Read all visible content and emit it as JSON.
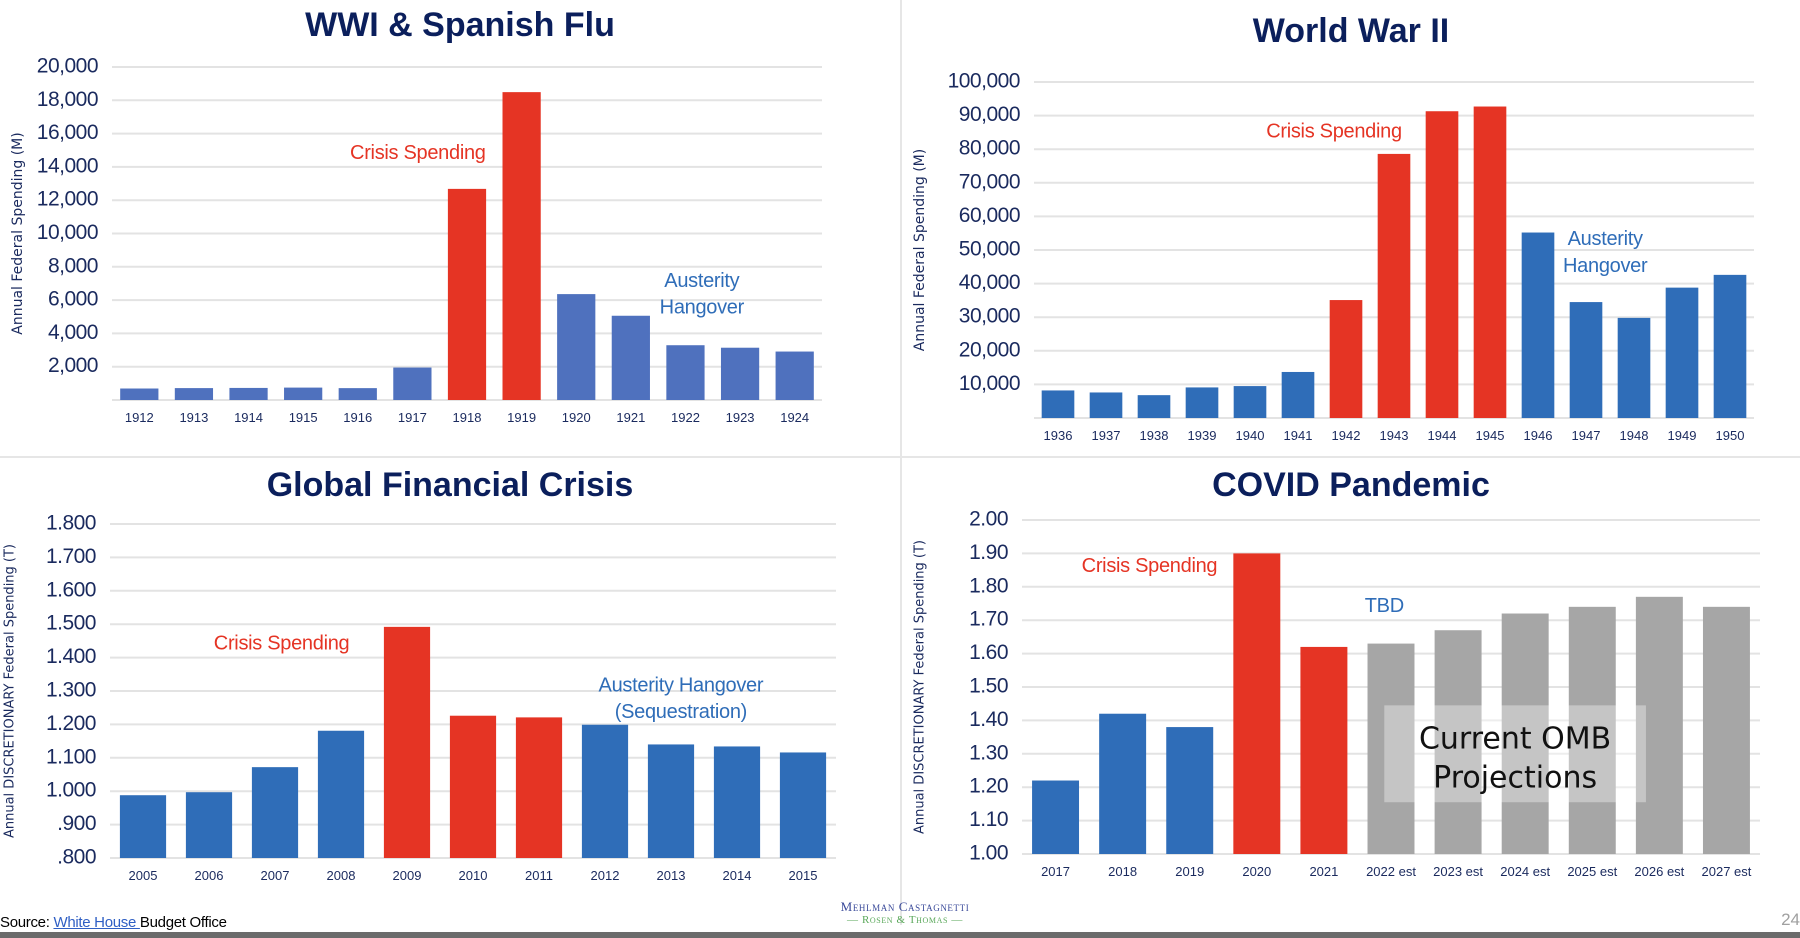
{
  "colors": {
    "title": "#0b1f5c",
    "axis_text": "#1a2a5e",
    "blue_wwi": "#4f71be",
    "blue": "#2f6db8",
    "red": "#e53424",
    "gray": "#a6a6a6",
    "grid": "#e3e3e3",
    "annotation_red": "#e53424",
    "annotation_blue": "#2f6db8"
  },
  "chart_data": [
    {
      "id": "wwi",
      "type": "bar",
      "title": "WWI & Spanish Flu",
      "xlabel": "",
      "ylabel": "Annual Federal Spending (M)",
      "ylim": [
        0,
        20000
      ],
      "yticks": [
        2000,
        4000,
        6000,
        8000,
        10000,
        12000,
        14000,
        16000,
        18000,
        20000
      ],
      "ytick_labels": [
        "2,000",
        "4,000",
        "6,000",
        "8,000",
        "10,000",
        "12,000",
        "14,000",
        "16,000",
        "18,000",
        "20,000"
      ],
      "grid": true,
      "categories": [
        "1912",
        "1913",
        "1914",
        "1915",
        "1916",
        "1917",
        "1918",
        "1919",
        "1920",
        "1921",
        "1922",
        "1923",
        "1924"
      ],
      "values": [
        690,
        715,
        725,
        745,
        713,
        1950,
        12680,
        18490,
        6360,
        5060,
        3290,
        3140,
        2910
      ],
      "bar_colors": [
        "blue_wwi",
        "blue_wwi",
        "blue_wwi",
        "blue_wwi",
        "blue_wwi",
        "blue_wwi",
        "red",
        "red",
        "blue_wwi",
        "blue_wwi",
        "blue_wwi",
        "blue_wwi",
        "blue_wwi"
      ],
      "annotations": [
        {
          "text": "Crisis Spending",
          "color": "annotation_red",
          "at_category": 5.6,
          "at_value": 14800
        },
        {
          "text": "Austerity",
          "color": "annotation_blue",
          "at_category": 10.8,
          "at_value": 7100
        },
        {
          "text": "Hangover",
          "color": "annotation_blue",
          "at_category": 10.8,
          "at_value": 5500
        }
      ]
    },
    {
      "id": "wwii",
      "type": "bar",
      "title": "World War II",
      "xlabel": "",
      "ylabel": "Annual Federal Spending (M)",
      "ylim": [
        0,
        100000
      ],
      "yticks": [
        10000,
        20000,
        30000,
        40000,
        50000,
        60000,
        70000,
        80000,
        90000,
        100000
      ],
      "ytick_labels": [
        "10,000",
        "20,000",
        "30,000",
        "40,000",
        "50,000",
        "60,000",
        "70,000",
        "80,000",
        "90,000",
        "100,000"
      ],
      "grid": true,
      "categories": [
        "1936",
        "1937",
        "1938",
        "1939",
        "1940",
        "1941",
        "1942",
        "1943",
        "1944",
        "1945",
        "1946",
        "1947",
        "1948",
        "1949",
        "1950"
      ],
      "values": [
        8200,
        7600,
        6800,
        9100,
        9500,
        13700,
        35100,
        78600,
        91300,
        92700,
        55200,
        34500,
        29800,
        38800,
        42600
      ],
      "bar_colors": [
        "blue",
        "blue",
        "blue",
        "blue",
        "blue",
        "blue",
        "red",
        "red",
        "red",
        "red",
        "blue",
        "blue",
        "blue",
        "blue",
        "blue"
      ],
      "annotations": [
        {
          "text": "Crisis Spending",
          "color": "annotation_red",
          "at_category": 6.25,
          "at_value": 85000
        },
        {
          "text": "Austerity",
          "color": "annotation_blue",
          "at_category": 11.9,
          "at_value": 53000
        },
        {
          "text": "Hangover",
          "color": "annotation_blue",
          "at_category": 11.9,
          "at_value": 45000
        }
      ]
    },
    {
      "id": "gfc",
      "type": "bar",
      "title": "Global Financial Crisis",
      "xlabel": "",
      "ylabel": "Annual DISCRETIONARY Federal Spending (T)",
      "ylim": [
        0.8,
        1.8
      ],
      "yticks": [
        0.8,
        0.9,
        1.0,
        1.1,
        1.2,
        1.3,
        1.4,
        1.5,
        1.6,
        1.7,
        1.8
      ],
      "ytick_labels": [
        ".800",
        ".900",
        "1.000",
        "1.100",
        "1.200",
        "1.300",
        "1.400",
        "1.500",
        "1.600",
        "1.700",
        "1.800"
      ],
      "grid": true,
      "categories": [
        "2005",
        "2006",
        "2007",
        "2008",
        "2009",
        "2010",
        "2011",
        "2012",
        "2013",
        "2014",
        "2015"
      ],
      "values": [
        0.988,
        0.997,
        1.072,
        1.181,
        1.492,
        1.226,
        1.221,
        1.199,
        1.14,
        1.134,
        1.116
      ],
      "bar_colors": [
        "blue",
        "blue",
        "blue",
        "blue",
        "red",
        "red",
        "red",
        "blue",
        "blue",
        "blue",
        "blue"
      ],
      "annotations": [
        {
          "text": "Crisis Spending",
          "color": "annotation_red",
          "at_category": 2.6,
          "at_value": 1.44
        },
        {
          "text": "Austerity Hangover",
          "color": "annotation_blue",
          "at_category": 8.65,
          "at_value": 1.315
        },
        {
          "text": "(Sequestration)",
          "color": "annotation_blue",
          "at_category": 8.65,
          "at_value": 1.235
        }
      ]
    },
    {
      "id": "covid",
      "type": "bar",
      "title": "COVID Pandemic",
      "xlabel": "",
      "ylabel": "Annual DISCRETIONARY Federal Spending (T)",
      "ylim": [
        1.0,
        2.0
      ],
      "yticks": [
        1.0,
        1.1,
        1.2,
        1.3,
        1.4,
        1.5,
        1.6,
        1.7,
        1.8,
        1.9,
        2.0
      ],
      "ytick_labels": [
        "1.00",
        "1.10",
        "1.20",
        "1.30",
        "1.40",
        "1.50",
        "1.60",
        "1.70",
        "1.80",
        "1.90",
        "2.00"
      ],
      "grid": true,
      "categories": [
        "2017",
        "2018",
        "2019",
        "2020",
        "2021",
        "2022 est",
        "2023 est",
        "2024 est",
        "2025 est",
        "2026 est",
        "2027 est"
      ],
      "values": [
        1.22,
        1.42,
        1.38,
        1.9,
        1.62,
        1.63,
        1.67,
        1.72,
        1.74,
        1.77,
        1.74
      ],
      "bar_colors": [
        "blue",
        "blue",
        "blue",
        "red",
        "red",
        "gray",
        "gray",
        "gray",
        "gray",
        "gray",
        "gray"
      ],
      "annotations": [
        {
          "text": "Crisis Spending",
          "color": "annotation_red",
          "at_category": 1.9,
          "at_value": 1.86
        },
        {
          "text": "TBD",
          "color": "annotation_blue",
          "at_category": 5.4,
          "at_value": 1.74
        }
      ],
      "overlay_box": {
        "lines": [
          "Current OMB",
          "Projections"
        ],
        "from_category": 5.4,
        "to_category": 9.3,
        "from_value": 1.155,
        "to_value": 1.445
      }
    }
  ],
  "footer": {
    "source_prefix": "Source: ",
    "source_link": "White House ",
    "source_suffix": "Budget Office",
    "logo_line1": "Mehlman Castagnetti",
    "logo_line2": "— Rosen & Thomas —",
    "page_number": "24"
  }
}
